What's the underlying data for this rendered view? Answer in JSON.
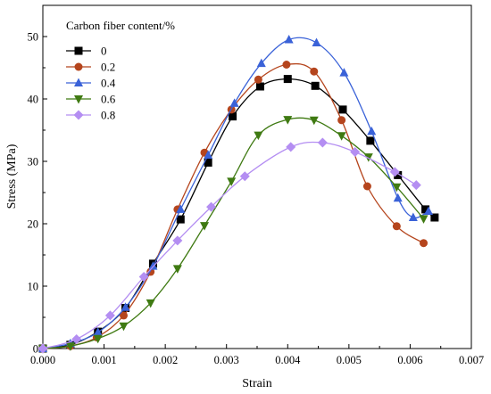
{
  "chart_data": {
    "type": "line",
    "xlabel": "Strain",
    "ylabel": "Stress (MPa)",
    "xlim": [
      0.0,
      0.007
    ],
    "ylim": [
      0,
      55
    ],
    "x_ticks": [
      0.0,
      0.001,
      0.002,
      0.003,
      0.004,
      0.005,
      0.006,
      0.007
    ],
    "x_tick_labels": [
      "0.000",
      "0.001",
      "0.002",
      "0.003",
      "0.004",
      "0.005",
      "0.006",
      "0.007"
    ],
    "y_ticks": [
      0,
      10,
      20,
      30,
      40,
      50
    ],
    "y_tick_labels": [
      "0",
      "10",
      "20",
      "30",
      "40",
      "50"
    ],
    "grid": false,
    "legend": {
      "title": "Carbon fiber content/%",
      "placement": "top-left"
    },
    "series": [
      {
        "name": "0",
        "color": "#000000",
        "marker": "square",
        "x": [
          0.0,
          0.00045,
          0.0009,
          0.00135,
          0.0018,
          0.00225,
          0.0027,
          0.0031,
          0.00355,
          0.004,
          0.00445,
          0.0049,
          0.00535,
          0.0058,
          0.00625,
          0.0064
        ],
        "y": [
          0.0,
          0.6,
          2.7,
          6.5,
          13.6,
          20.7,
          29.8,
          37.2,
          42.0,
          43.2,
          42.1,
          38.3,
          33.3,
          27.8,
          22.3,
          21.0
        ]
      },
      {
        "name": "0.2",
        "color": "#b5451d",
        "marker": "circle",
        "x": [
          0.0,
          0.00045,
          0.00088,
          0.00132,
          0.00176,
          0.0022,
          0.00264,
          0.00308,
          0.00352,
          0.00398,
          0.00443,
          0.00488,
          0.0053,
          0.00578,
          0.00622
        ],
        "y": [
          0.0,
          0.4,
          1.8,
          5.3,
          12.3,
          22.3,
          31.4,
          38.3,
          43.1,
          45.5,
          44.4,
          36.6,
          26.0,
          19.6,
          16.9
        ]
      },
      {
        "name": "0.4",
        "color": "#3a62d8",
        "marker": "triangle-up",
        "x": [
          0.0,
          0.00045,
          0.0009,
          0.00135,
          0.0018,
          0.00225,
          0.0027,
          0.00313,
          0.00357,
          0.00402,
          0.00447,
          0.00492,
          0.00537,
          0.0058,
          0.00605,
          0.0063
        ],
        "y": [
          0.0,
          0.8,
          2.6,
          6.6,
          13.2,
          22.3,
          31.0,
          39.3,
          45.7,
          49.5,
          49.0,
          44.2,
          34.8,
          24.1,
          21.0,
          22.0
        ]
      },
      {
        "name": "0.6",
        "color": "#3f7a12",
        "marker": "triangle-down",
        "x": [
          0.0,
          0.00045,
          0.0009,
          0.00132,
          0.00176,
          0.0022,
          0.00264,
          0.00308,
          0.00352,
          0.004,
          0.00443,
          0.00488,
          0.00532,
          0.00578,
          0.00622
        ],
        "y": [
          0.0,
          0.4,
          1.6,
          3.6,
          7.3,
          12.8,
          19.7,
          26.8,
          34.2,
          36.7,
          36.6,
          34.1,
          30.7,
          25.9,
          20.8
        ]
      },
      {
        "name": "0.8",
        "color": "#b48ef2",
        "marker": "diamond",
        "x": [
          0.0,
          0.00055,
          0.0011,
          0.00165,
          0.0022,
          0.00275,
          0.0033,
          0.00405,
          0.00457,
          0.0051,
          0.00575,
          0.0061
        ],
        "y": [
          0.0,
          1.5,
          5.3,
          11.5,
          17.3,
          22.7,
          27.6,
          32.3,
          33.0,
          31.5,
          28.3,
          26.2
        ]
      }
    ]
  }
}
